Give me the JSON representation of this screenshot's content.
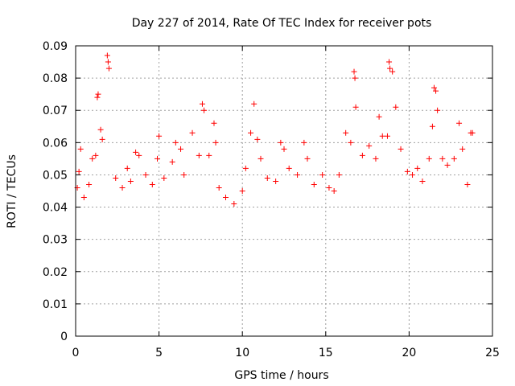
{
  "chart_data": {
    "type": "scatter",
    "title": "Day 227 of 2014, Rate Of TEC Index for receiver pots",
    "xlabel": "GPS time / hours",
    "ylabel": "ROTI / TECUs",
    "xlim": [
      0,
      25
    ],
    "ylim": [
      0,
      0.09
    ],
    "x_ticks": [
      0,
      5,
      10,
      15,
      20,
      25
    ],
    "x_tick_labels": [
      "0",
      "5",
      "10",
      "15",
      "20",
      "25"
    ],
    "y_ticks": [
      0,
      0.01,
      0.02,
      0.03,
      0.04,
      0.05,
      0.06,
      0.07,
      0.08,
      0.09
    ],
    "y_tick_labels": [
      "0",
      "0.01",
      "0.02",
      "0.03",
      "0.04",
      "0.05",
      "0.06",
      "0.07",
      "0.08",
      "0.09"
    ],
    "grid": true,
    "marker": "+",
    "marker_color": "#ff0000",
    "series": [
      {
        "name": "ROTI",
        "points": [
          [
            0.1,
            0.046
          ],
          [
            0.2,
            0.051
          ],
          [
            0.3,
            0.058
          ],
          [
            0.5,
            0.043
          ],
          [
            0.8,
            0.047
          ],
          [
            1.0,
            0.055
          ],
          [
            1.2,
            0.056
          ],
          [
            1.3,
            0.074
          ],
          [
            1.35,
            0.075
          ],
          [
            1.5,
            0.064
          ],
          [
            1.6,
            0.061
          ],
          [
            1.9,
            0.087
          ],
          [
            1.95,
            0.085
          ],
          [
            2.0,
            0.083
          ],
          [
            2.4,
            0.049
          ],
          [
            2.8,
            0.046
          ],
          [
            3.1,
            0.052
          ],
          [
            3.3,
            0.048
          ],
          [
            3.6,
            0.057
          ],
          [
            3.8,
            0.056
          ],
          [
            4.2,
            0.05
          ],
          [
            4.6,
            0.047
          ],
          [
            4.9,
            0.055
          ],
          [
            5.0,
            0.062
          ],
          [
            5.3,
            0.049
          ],
          [
            5.8,
            0.054
          ],
          [
            6.0,
            0.06
          ],
          [
            6.3,
            0.058
          ],
          [
            6.5,
            0.05
          ],
          [
            7.0,
            0.063
          ],
          [
            7.4,
            0.056
          ],
          [
            7.6,
            0.072
          ],
          [
            7.7,
            0.07
          ],
          [
            8.0,
            0.056
          ],
          [
            8.3,
            0.066
          ],
          [
            8.4,
            0.06
          ],
          [
            8.6,
            0.046
          ],
          [
            9.0,
            0.043
          ],
          [
            9.5,
            0.041
          ],
          [
            10.0,
            0.045
          ],
          [
            10.2,
            0.052
          ],
          [
            10.5,
            0.063
          ],
          [
            10.7,
            0.072
          ],
          [
            10.9,
            0.061
          ],
          [
            11.1,
            0.055
          ],
          [
            11.5,
            0.049
          ],
          [
            12.0,
            0.048
          ],
          [
            12.3,
            0.06
          ],
          [
            12.5,
            0.058
          ],
          [
            12.8,
            0.052
          ],
          [
            13.3,
            0.05
          ],
          [
            13.7,
            0.06
          ],
          [
            13.9,
            0.055
          ],
          [
            14.3,
            0.047
          ],
          [
            14.8,
            0.05
          ],
          [
            15.2,
            0.046
          ],
          [
            15.5,
            0.045
          ],
          [
            15.8,
            0.05
          ],
          [
            16.2,
            0.063
          ],
          [
            16.5,
            0.06
          ],
          [
            16.7,
            0.082
          ],
          [
            16.75,
            0.08
          ],
          [
            16.8,
            0.071
          ],
          [
            17.2,
            0.056
          ],
          [
            17.6,
            0.059
          ],
          [
            18.0,
            0.055
          ],
          [
            18.2,
            0.068
          ],
          [
            18.4,
            0.062
          ],
          [
            18.7,
            0.062
          ],
          [
            18.8,
            0.085
          ],
          [
            18.85,
            0.083
          ],
          [
            19.0,
            0.082
          ],
          [
            19.2,
            0.071
          ],
          [
            19.5,
            0.058
          ],
          [
            19.9,
            0.051
          ],
          [
            20.2,
            0.05
          ],
          [
            20.5,
            0.052
          ],
          [
            20.8,
            0.048
          ],
          [
            21.2,
            0.055
          ],
          [
            21.4,
            0.065
          ],
          [
            21.5,
            0.077
          ],
          [
            21.6,
            0.076
          ],
          [
            21.7,
            0.07
          ],
          [
            22.0,
            0.055
          ],
          [
            22.3,
            0.053
          ],
          [
            22.7,
            0.055
          ],
          [
            23.0,
            0.066
          ],
          [
            23.2,
            0.058
          ],
          [
            23.5,
            0.047
          ],
          [
            23.7,
            0.063
          ],
          [
            23.8,
            0.063
          ]
        ]
      }
    ]
  }
}
